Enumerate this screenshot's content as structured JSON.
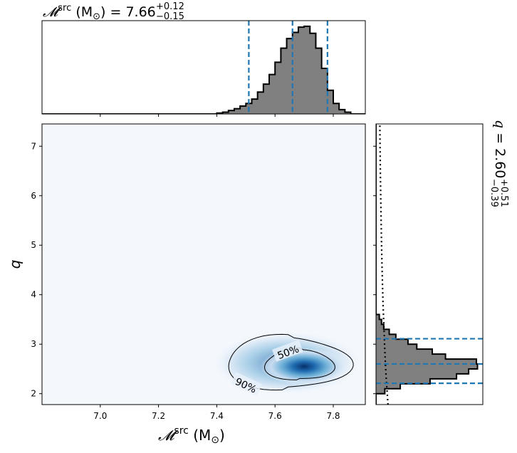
{
  "chart_data": {
    "type": "corner",
    "colors": {
      "hist_fill": "#808080",
      "hist_edge": "#000000",
      "credible_line": "#1f77b4",
      "density_light": "#f4f8fd",
      "density_dark": "#08306b"
    },
    "parameters": [
      {
        "symbol": "𝓜",
        "superscript": "src",
        "unit": "(M",
        "unit_sub": "⊙",
        "unit_close": ")",
        "median": "7.66",
        "err_plus": "+0.12",
        "err_minus": "−0.15",
        "range": [
          6.8,
          7.91
        ],
        "ticks": [
          "7.0",
          "7.2",
          "7.4",
          "7.6",
          "7.8"
        ],
        "tick_values": [
          7.0,
          7.2,
          7.4,
          7.6,
          7.8
        ],
        "credible_lines": [
          7.51,
          7.66,
          7.78
        ]
      },
      {
        "symbol": "q",
        "median": "2.60",
        "err_plus": "+0.51",
        "err_minus": "−0.39",
        "range": [
          1.78,
          7.45
        ],
        "ticks": [
          "2",
          "3",
          "4",
          "5",
          "6",
          "7"
        ],
        "tick_values": [
          2,
          3,
          4,
          5,
          6,
          7
        ],
        "credible_lines": [
          2.21,
          2.6,
          3.11
        ]
      }
    ],
    "mchirp_hist": {
      "bin_edges": [
        7.4,
        7.42,
        7.44,
        7.46,
        7.48,
        7.5,
        7.52,
        7.54,
        7.56,
        7.58,
        7.6,
        7.62,
        7.64,
        7.66,
        7.68,
        7.7,
        7.72,
        7.74,
        7.76,
        7.78,
        7.8,
        7.82,
        7.84,
        7.86
      ],
      "counts": [
        0.01,
        0.02,
        0.04,
        0.06,
        0.09,
        0.12,
        0.17,
        0.25,
        0.34,
        0.45,
        0.59,
        0.75,
        0.86,
        0.93,
        0.99,
        1.0,
        0.92,
        0.75,
        0.52,
        0.27,
        0.12,
        0.05,
        0.02
      ]
    },
    "q_hist": {
      "bin_edges": [
        2.0,
        2.1,
        2.2,
        2.3,
        2.4,
        2.5,
        2.6,
        2.7,
        2.8,
        2.9,
        3.0,
        3.1,
        3.2,
        3.3,
        3.4,
        3.5,
        3.6
      ],
      "counts": [
        0.08,
        0.22,
        0.49,
        0.73,
        0.84,
        0.92,
        0.91,
        0.63,
        0.51,
        0.37,
        0.29,
        0.18,
        0.12,
        0.07,
        0.05,
        0.03
      ]
    },
    "prior_curve": {
      "q": [
        1.78,
        2.0,
        2.3,
        2.6,
        3.0,
        3.4,
        3.8,
        4.2,
        4.6,
        5.0,
        5.5,
        6.0,
        6.5,
        7.0,
        7.45
      ],
      "density": [
        0.112,
        0.105,
        0.096,
        0.088,
        0.08,
        0.073,
        0.066,
        0.061,
        0.056,
        0.052,
        0.048,
        0.044,
        0.041,
        0.038,
        0.036
      ]
    },
    "density_peak": {
      "mchirp": 7.7,
      "q": 2.55
    },
    "contours": [
      {
        "label": "50%",
        "center": [
          7.685,
          2.58
        ],
        "half_width": [
          0.115,
          0.32
        ],
        "label_at": [
          7.645,
          2.84
        ]
      },
      {
        "label": "90%",
        "center": [
          7.645,
          2.62
        ],
        "half_width": [
          0.205,
          0.55
        ],
        "label_at": [
          7.5,
          2.17
        ]
      }
    ]
  }
}
